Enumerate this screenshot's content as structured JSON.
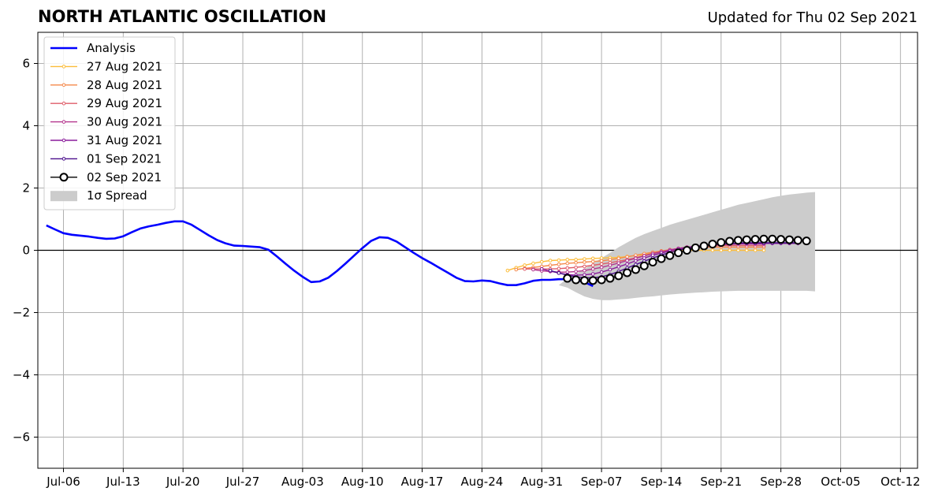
{
  "title": "NORTH ATLANTIC OSCILLATION",
  "subtitle": "Updated for Thu 02 Sep 2021",
  "chart_data": {
    "type": "line",
    "x_axis_type": "date",
    "xlim": [
      "2021-07-03",
      "2021-10-14"
    ],
    "ylim": [
      -7,
      7
    ],
    "grid": true,
    "legend_position": "top-left",
    "x_ticks": [
      {
        "date": "2021-07-06",
        "label": "Jul-06"
      },
      {
        "date": "2021-07-13",
        "label": "Jul-13"
      },
      {
        "date": "2021-07-20",
        "label": "Jul-20"
      },
      {
        "date": "2021-07-27",
        "label": "Jul-27"
      },
      {
        "date": "2021-08-03",
        "label": "Aug-03"
      },
      {
        "date": "2021-08-10",
        "label": "Aug-10"
      },
      {
        "date": "2021-08-17",
        "label": "Aug-17"
      },
      {
        "date": "2021-08-24",
        "label": "Aug-24"
      },
      {
        "date": "2021-08-31",
        "label": "Aug-31"
      },
      {
        "date": "2021-09-07",
        "label": "Sep-07"
      },
      {
        "date": "2021-09-14",
        "label": "Sep-14"
      },
      {
        "date": "2021-09-21",
        "label": "Sep-21"
      },
      {
        "date": "2021-09-28",
        "label": "Sep-28"
      },
      {
        "date": "2021-10-05",
        "label": "Oct-05"
      },
      {
        "date": "2021-10-12",
        "label": "Oct-12"
      }
    ],
    "y_ticks": [
      {
        "value": 6,
        "label": "6"
      },
      {
        "value": 4,
        "label": "4"
      },
      {
        "value": 2,
        "label": "2"
      },
      {
        "value": 0,
        "label": "0"
      },
      {
        "value": -2,
        "label": "−2"
      },
      {
        "value": -4,
        "label": "−4"
      },
      {
        "value": -6,
        "label": "−6"
      }
    ],
    "analysis": {
      "name": "Analysis",
      "color": "#0000ff",
      "start": "2021-07-04",
      "values": [
        0.8,
        0.67,
        0.55,
        0.5,
        0.47,
        0.44,
        0.4,
        0.37,
        0.38,
        0.45,
        0.58,
        0.7,
        0.77,
        0.82,
        0.88,
        0.93,
        0.93,
        0.82,
        0.65,
        0.48,
        0.33,
        0.22,
        0.15,
        0.14,
        0.12,
        0.1,
        0.02,
        -0.2,
        -0.43,
        -0.65,
        -0.85,
        -1.02,
        -1.0,
        -0.88,
        -0.67,
        -0.43,
        -0.18,
        0.07,
        0.3,
        0.42,
        0.4,
        0.28,
        0.1,
        -0.08,
        -0.25,
        -0.4,
        -0.56,
        -0.72,
        -0.88,
        -0.99,
        -1.0,
        -0.97,
        -0.99,
        -1.06,
        -1.12,
        -1.12,
        -1.06,
        -0.98,
        -0.95,
        -0.95,
        -0.93,
        -0.93,
        -0.95,
        -1.02,
        -1.15
      ]
    },
    "forecasts": [
      {
        "name": "27 Aug 2021",
        "color": "#fcbd3a",
        "start": "2021-08-27",
        "values": [
          -0.65,
          -0.56,
          -0.48,
          -0.42,
          -0.37,
          -0.33,
          -0.32,
          -0.3,
          -0.3,
          -0.28,
          -0.26,
          -0.25,
          -0.24,
          -0.23,
          -0.2,
          -0.17,
          -0.14,
          -0.1,
          -0.06,
          -0.03,
          0.0,
          0.0,
          0.0,
          0.0,
          0.0,
          0.0,
          0.0,
          0.0,
          0.0,
          0.0,
          0.0
        ]
      },
      {
        "name": "28 Aug 2021",
        "color": "#f5894b",
        "start": "2021-08-28",
        "values": [
          -0.62,
          -0.58,
          -0.55,
          -0.52,
          -0.48,
          -0.45,
          -0.42,
          -0.4,
          -0.38,
          -0.36,
          -0.34,
          -0.3,
          -0.26,
          -0.21,
          -0.16,
          -0.11,
          -0.06,
          -0.02,
          0.02,
          0.05,
          0.08,
          0.1,
          0.1,
          0.1,
          0.1,
          0.1,
          0.1,
          0.1,
          0.1,
          0.1
        ]
      },
      {
        "name": "29 Aug 2021",
        "color": "#df5c68",
        "start": "2021-08-29",
        "values": [
          -0.6,
          -0.6,
          -0.6,
          -0.6,
          -0.59,
          -0.57,
          -0.55,
          -0.52,
          -0.48,
          -0.44,
          -0.4,
          -0.35,
          -0.3,
          -0.24,
          -0.17,
          -0.1,
          -0.04,
          0.01,
          0.06,
          0.1,
          0.12,
          0.13,
          0.14,
          0.15,
          0.15,
          0.15,
          0.15,
          0.15,
          0.15
        ]
      },
      {
        "name": "30 Aug 2021",
        "color": "#b4358d",
        "start": "2021-08-30",
        "values": [
          -0.62,
          -0.66,
          -0.68,
          -0.7,
          -0.7,
          -0.68,
          -0.65,
          -0.6,
          -0.55,
          -0.48,
          -0.41,
          -0.33,
          -0.26,
          -0.18,
          -0.11,
          -0.05,
          0.01,
          0.06,
          0.1,
          0.13,
          0.15,
          0.17,
          0.18,
          0.19,
          0.2,
          0.2,
          0.2,
          0.2
        ]
      },
      {
        "name": "31 Aug 2021",
        "color": "#8a1b9b",
        "start": "2021-08-31",
        "values": [
          -0.6,
          -0.67,
          -0.73,
          -0.78,
          -0.8,
          -0.79,
          -0.76,
          -0.7,
          -0.62,
          -0.53,
          -0.44,
          -0.34,
          -0.25,
          -0.16,
          -0.09,
          -0.02,
          0.04,
          0.09,
          0.13,
          0.16,
          0.18,
          0.2,
          0.21,
          0.22,
          0.22,
          0.22,
          0.22,
          0.22,
          0.22,
          0.22,
          0.22
        ]
      },
      {
        "name": "01 Sep 2021",
        "color": "#4a0e8c",
        "start": "2021-09-01",
        "values": [
          -0.65,
          -0.73,
          -0.8,
          -0.85,
          -0.88,
          -0.88,
          -0.85,
          -0.78,
          -0.68,
          -0.57,
          -0.46,
          -0.35,
          -0.25,
          -0.15,
          -0.07,
          0.0,
          0.06,
          0.11,
          0.15,
          0.18,
          0.2,
          0.22,
          0.23,
          0.24,
          0.24,
          0.24,
          0.24,
          0.24,
          0.24,
          0.24
        ]
      }
    ],
    "current": {
      "name": "02 Sep 2021",
      "color": "#000000",
      "marker_fill": "#ffffff",
      "start": "2021-09-03",
      "values": [
        -0.9,
        -0.95,
        -0.97,
        -0.97,
        -0.95,
        -0.9,
        -0.82,
        -0.72,
        -0.62,
        -0.5,
        -0.38,
        -0.27,
        -0.17,
        -0.08,
        0.0,
        0.08,
        0.14,
        0.2,
        0.25,
        0.29,
        0.32,
        0.34,
        0.35,
        0.36,
        0.36,
        0.35,
        0.34,
        0.32,
        0.3
      ]
    },
    "spread": {
      "name": "1σ Spread",
      "color": "#cccccc",
      "start": "2021-09-02",
      "upper": [
        -1.12,
        -0.9,
        -0.75,
        -0.6,
        -0.42,
        -0.25,
        -0.08,
        0.1,
        0.25,
        0.4,
        0.52,
        0.62,
        0.72,
        0.82,
        0.9,
        0.98,
        1.06,
        1.14,
        1.22,
        1.3,
        1.38,
        1.46,
        1.52,
        1.58,
        1.64,
        1.7,
        1.75,
        1.79,
        1.82,
        1.85,
        1.87
      ],
      "lower": [
        -1.12,
        -1.2,
        -1.35,
        -1.48,
        -1.56,
        -1.6,
        -1.6,
        -1.58,
        -1.56,
        -1.53,
        -1.5,
        -1.48,
        -1.45,
        -1.42,
        -1.4,
        -1.38,
        -1.36,
        -1.35,
        -1.33,
        -1.32,
        -1.31,
        -1.3,
        -1.3,
        -1.3,
        -1.3,
        -1.3,
        -1.3,
        -1.3,
        -1.3,
        -1.3,
        -1.32
      ]
    },
    "legend": [
      {
        "label": "Analysis",
        "kind": "line",
        "color": "#0000ff"
      },
      {
        "label": "27 Aug 2021",
        "kind": "marker-line",
        "color": "#fcbd3a"
      },
      {
        "label": "28 Aug 2021",
        "kind": "marker-line",
        "color": "#f5894b"
      },
      {
        "label": "29 Aug 2021",
        "kind": "marker-line",
        "color": "#df5c68"
      },
      {
        "label": "30 Aug 2021",
        "kind": "marker-line",
        "color": "#b4358d"
      },
      {
        "label": "31 Aug 2021",
        "kind": "marker-line",
        "color": "#8a1b9b"
      },
      {
        "label": "01 Sep 2021",
        "kind": "marker-line",
        "color": "#4a0e8c"
      },
      {
        "label": "02 Sep 2021",
        "kind": "open-marker-line",
        "color": "#000000"
      },
      {
        "label": "1σ Spread",
        "kind": "patch",
        "color": "#cccccc"
      }
    ]
  }
}
